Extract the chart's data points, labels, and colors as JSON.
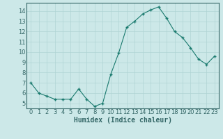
{
  "x": [
    0,
    1,
    2,
    3,
    4,
    5,
    6,
    7,
    8,
    9,
    10,
    11,
    12,
    13,
    14,
    15,
    16,
    17,
    18,
    19,
    20,
    21,
    22,
    23
  ],
  "y": [
    7.0,
    6.0,
    5.7,
    5.4,
    5.4,
    5.4,
    6.4,
    5.4,
    4.7,
    5.0,
    7.8,
    9.9,
    12.4,
    13.0,
    13.7,
    14.1,
    14.4,
    13.3,
    12.0,
    11.4,
    10.4,
    9.3,
    8.8,
    9.6
  ],
  "line_color": "#1a7a6e",
  "marker": "+",
  "marker_size": 3,
  "marker_lw": 1.0,
  "bg_color": "#cce8e8",
  "grid_color": "#b0d4d4",
  "xlabel": "Humidex (Indice chaleur)",
  "xlabel_fontsize": 7,
  "tick_fontsize": 6,
  "ylim": [
    4.5,
    14.8
  ],
  "xlim": [
    -0.5,
    23.5
  ],
  "yticks": [
    5,
    6,
    7,
    8,
    9,
    10,
    11,
    12,
    13,
    14
  ],
  "xticks": [
    0,
    1,
    2,
    3,
    4,
    5,
    6,
    7,
    8,
    9,
    10,
    11,
    12,
    13,
    14,
    15,
    16,
    17,
    18,
    19,
    20,
    21,
    22,
    23
  ],
  "line_width": 0.8,
  "spine_color": "#336666"
}
